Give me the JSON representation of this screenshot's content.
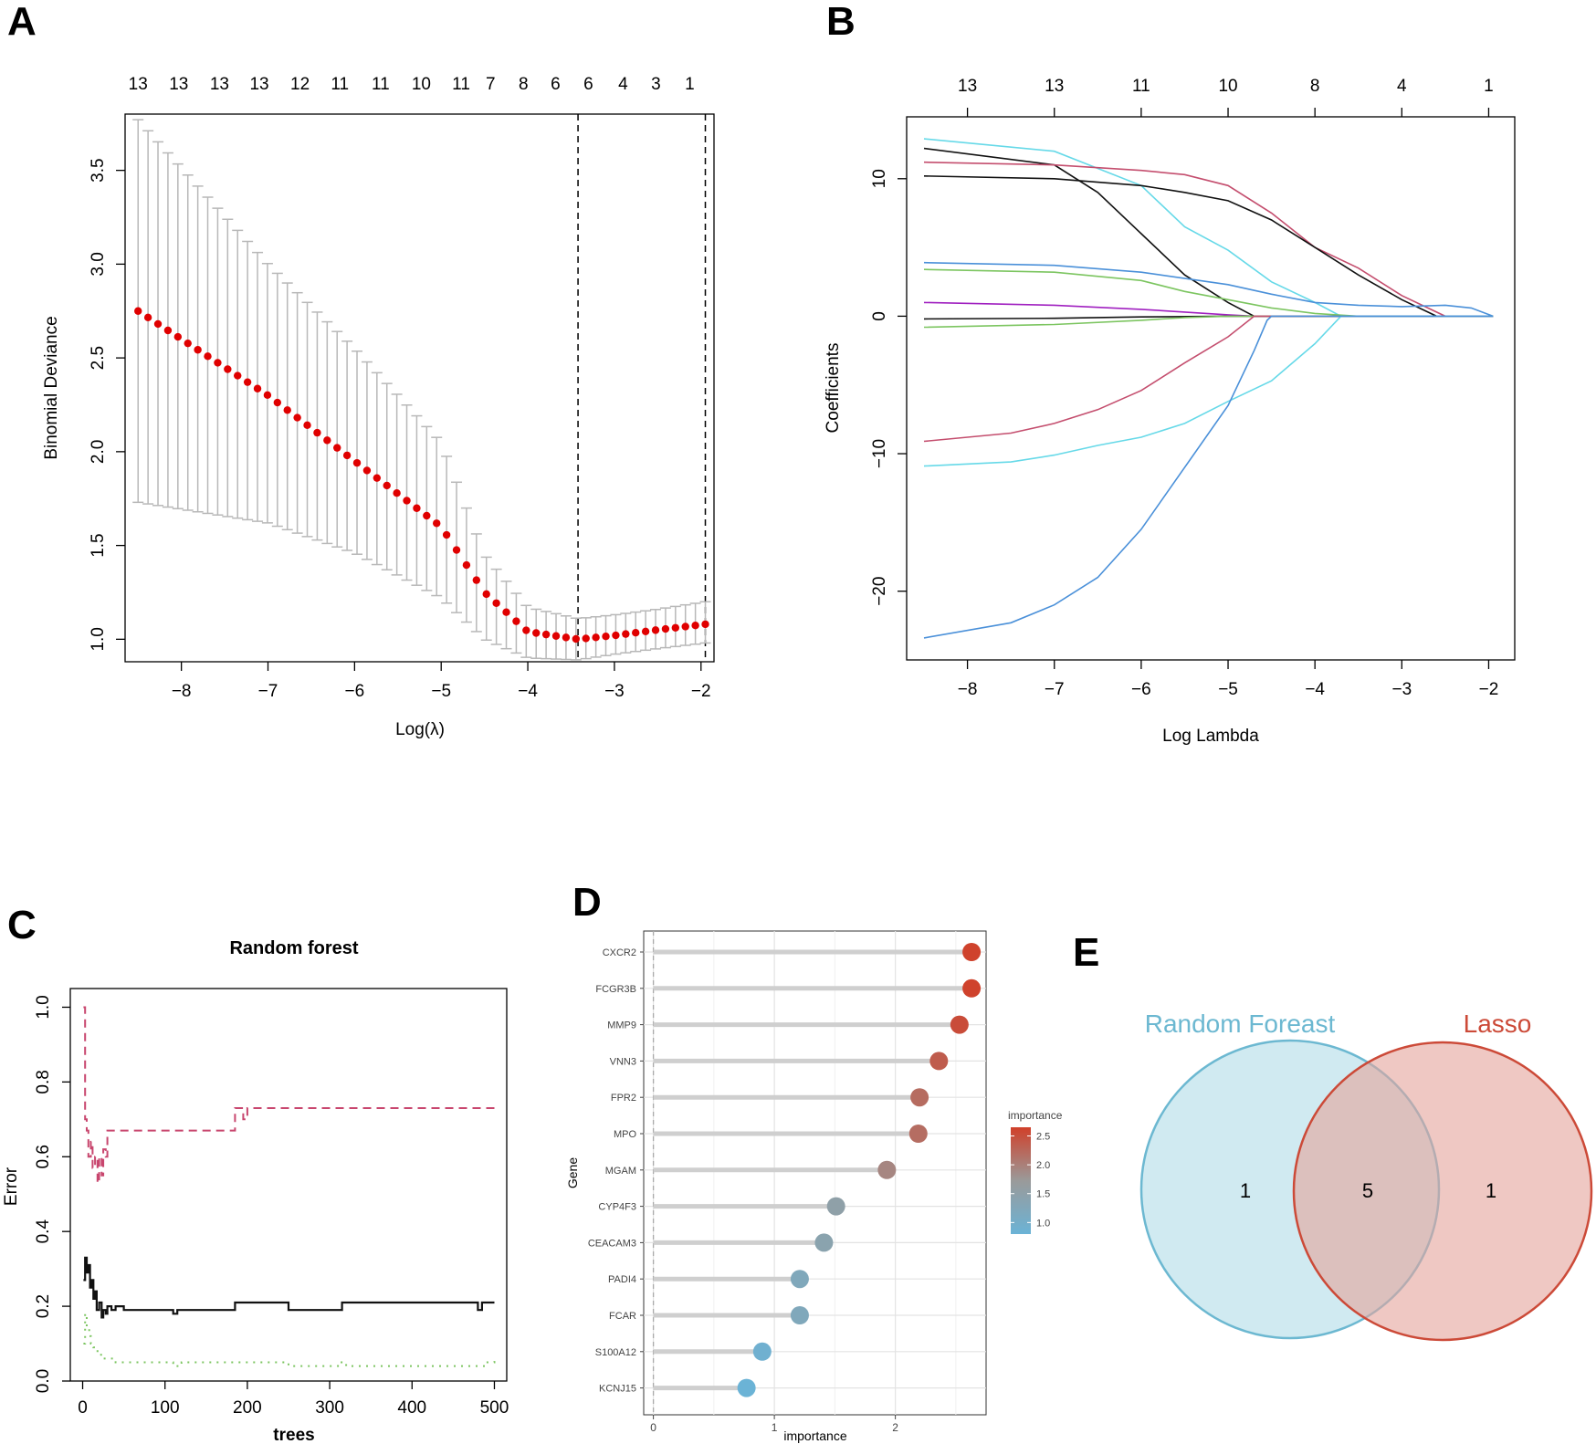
{
  "panels": {
    "A": "A",
    "B": "B",
    "C": "C",
    "D": "D",
    "E": "E"
  },
  "chart_data": [
    {
      "panel": "A",
      "type": "scatter",
      "xlabel": "Log(λ)",
      "ylabel": "Binomial Deviance",
      "xlim": [
        -8.65,
        -1.85
      ],
      "ylim": [
        0.88,
        3.8
      ],
      "x_ticks": [
        -8,
        -7,
        -6,
        -5,
        -4,
        -3,
        -2
      ],
      "y_ticks": [
        1.0,
        1.5,
        2.0,
        2.5,
        3.0,
        3.5
      ],
      "top_axis_x": [
        -8.5,
        -8.03,
        -7.56,
        -7.1,
        -6.63,
        -6.17,
        -5.7,
        -5.23,
        -4.77,
        -4.43,
        -4.05,
        -3.68,
        -3.3,
        -2.9,
        -2.52,
        -2.13
      ],
      "top_axis_labels": [
        "13",
        "13",
        "13",
        "13",
        "12",
        "11",
        "11",
        "10",
        "11",
        "7",
        "8",
        "6",
        "6",
        "4",
        "3",
        "1"
      ],
      "lambda_min": -3.42,
      "lambda_1se": -1.95,
      "x": [
        -8.5,
        -7.0,
        -6.0,
        -5.0,
        -4.5,
        -4.0,
        -3.42,
        -3.0,
        -2.5,
        -1.95
      ],
      "y": [
        2.75,
        2.3,
        1.95,
        1.6,
        1.25,
        1.04,
        1.0,
        1.02,
        1.05,
        1.08
      ],
      "y_upper": [
        3.77,
        3.0,
        2.55,
        2.05,
        1.45,
        1.17,
        1.11,
        1.13,
        1.16,
        1.2
      ],
      "y_lower": [
        1.73,
        1.62,
        1.46,
        1.22,
        1.0,
        0.9,
        0.89,
        0.92,
        0.95,
        0.98
      ],
      "point_color": "#e00000",
      "errorbar_color": "#b8b8b8"
    },
    {
      "panel": "B",
      "type": "line",
      "xlabel": "Log Lambda",
      "ylabel": "Coefficients",
      "xlim": [
        -8.7,
        -1.7
      ],
      "ylim": [
        -25,
        14.5
      ],
      "x_ticks": [
        -8,
        -7,
        -6,
        -5,
        -4,
        -3,
        -2
      ],
      "y_ticks": [
        -20,
        -10,
        0,
        10
      ],
      "top_axis_x": [
        -8,
        -7,
        -6,
        -5,
        -4,
        -3,
        -2
      ],
      "top_axis_labels": [
        "13",
        "13",
        "11",
        "10",
        "8",
        "4",
        "1"
      ],
      "series": [
        {
          "color": "#66d9e8",
          "x": [
            -8.5,
            -7,
            -6,
            -5.5,
            -5,
            -4.5,
            -4,
            -3.7,
            -3.5
          ],
          "y": [
            12.9,
            12.0,
            9.5,
            6.5,
            4.8,
            2.5,
            1.0,
            0.0,
            0.0
          ]
        },
        {
          "color": "#111111",
          "x": [
            -8.5,
            -7,
            -6.5,
            -6,
            -5.5,
            -5,
            -4.7,
            -4.5
          ],
          "y": [
            12.2,
            11.0,
            9.0,
            6.0,
            3.0,
            1.0,
            0.0,
            0.0
          ]
        },
        {
          "color": "#c44e6e",
          "x": [
            -8.5,
            -7,
            -6,
            -5.5,
            -5,
            -4.5,
            -4,
            -3.5,
            -3,
            -2.5,
            -2.3
          ],
          "y": [
            11.2,
            11.0,
            10.6,
            10.3,
            9.5,
            7.5,
            5.0,
            3.5,
            1.5,
            0.0,
            0.0
          ]
        },
        {
          "color": "#111111",
          "x": [
            -8.5,
            -7,
            -6,
            -5.5,
            -5,
            -4.5,
            -4,
            -3.5,
            -3,
            -2.6,
            -2.4
          ],
          "y": [
            10.2,
            10.0,
            9.5,
            9.0,
            8.4,
            7.0,
            5.0,
            3.0,
            1.2,
            0.0,
            0.0
          ]
        },
        {
          "color": "#4a90d9",
          "x": [
            -8.5,
            -7,
            -6,
            -5,
            -4.5,
            -4,
            -3.5,
            -3,
            -2.5,
            -2.2,
            -1.95
          ],
          "y": [
            3.9,
            3.7,
            3.2,
            2.3,
            1.6,
            1.0,
            0.8,
            0.7,
            0.8,
            0.6,
            0.0
          ]
        },
        {
          "color": "#7cc560",
          "x": [
            -8.5,
            -7,
            -6,
            -5.5,
            -5,
            -4.5,
            -4,
            -3.5
          ],
          "y": [
            3.4,
            3.2,
            2.6,
            1.8,
            1.2,
            0.6,
            0.2,
            0.0
          ]
        },
        {
          "color": "#a020c0",
          "x": [
            -8.5,
            -7,
            -6,
            -5.5,
            -5,
            -4.7
          ],
          "y": [
            1.0,
            0.8,
            0.5,
            0.3,
            0.1,
            0.0
          ]
        },
        {
          "color": "#111111",
          "x": [
            -8.5,
            -7,
            -6,
            -5,
            -4.7
          ],
          "y": [
            -0.2,
            -0.15,
            -0.05,
            0.0,
            0.0
          ]
        },
        {
          "color": "#7cc560",
          "x": [
            -8.5,
            -7,
            -6,
            -5.5,
            -5,
            -4.7
          ],
          "y": [
            -0.8,
            -0.6,
            -0.3,
            -0.1,
            0.0,
            0.0
          ]
        },
        {
          "color": "#c44e6e",
          "x": [
            -8.5,
            -7.5,
            -7,
            -6.5,
            -6,
            -5.5,
            -5,
            -4.7
          ],
          "y": [
            -9.1,
            -8.5,
            -7.8,
            -6.8,
            -5.4,
            -3.4,
            -1.5,
            0.0
          ]
        },
        {
          "color": "#66d9e8",
          "x": [
            -8.5,
            -7.5,
            -7,
            -6.5,
            -6,
            -5.5,
            -5,
            -4.5,
            -4,
            -3.7
          ],
          "y": [
            -10.9,
            -10.6,
            -10.1,
            -9.4,
            -8.8,
            -7.8,
            -6.2,
            -4.7,
            -2.0,
            0.0
          ]
        },
        {
          "color": "#4a90d9",
          "x": [
            -8.5,
            -7.5,
            -7,
            -6.5,
            -6,
            -5.5,
            -5,
            -4.7,
            -4.55,
            -4.5
          ],
          "y": [
            -23.4,
            -22.3,
            -21.0,
            -19.0,
            -15.5,
            -11.0,
            -6.5,
            -2.5,
            -0.3,
            0.0
          ]
        }
      ]
    },
    {
      "panel": "C",
      "type": "line",
      "title": "Random forest",
      "xlabel": "trees",
      "ylabel": "Error",
      "xlim": [
        -15,
        515
      ],
      "ylim": [
        0,
        1.05
      ],
      "x_ticks": [
        0,
        100,
        200,
        300,
        400,
        500
      ],
      "y_ticks": [
        0.0,
        0.2,
        0.4,
        0.6,
        0.8,
        1.0
      ],
      "series": [
        {
          "color": "#111111",
          "dash": "solid",
          "x": [
            1,
            3,
            5,
            7,
            9,
            11,
            13,
            15,
            17,
            20,
            23,
            25,
            28,
            30,
            35,
            40,
            50,
            105,
            110,
            115,
            120,
            180,
            185,
            245,
            250,
            310,
            315,
            480,
            485,
            500
          ],
          "y": [
            0.27,
            0.33,
            0.29,
            0.31,
            0.25,
            0.27,
            0.22,
            0.24,
            0.19,
            0.21,
            0.17,
            0.19,
            0.18,
            0.2,
            0.19,
            0.2,
            0.19,
            0.19,
            0.18,
            0.19,
            0.19,
            0.19,
            0.21,
            0.21,
            0.19,
            0.19,
            0.21,
            0.19,
            0.21,
            0.21
          ]
        },
        {
          "color": "#c8466e",
          "dash": "dashed",
          "x": [
            1,
            3,
            5,
            7,
            10,
            12,
            15,
            18,
            20,
            23,
            25,
            28,
            30,
            35,
            180,
            185,
            195,
            200,
            500
          ],
          "y": [
            1.0,
            0.7,
            0.67,
            0.6,
            0.64,
            0.57,
            0.6,
            0.53,
            0.6,
            0.55,
            0.62,
            0.6,
            0.67,
            0.67,
            0.67,
            0.73,
            0.7,
            0.73,
            0.73
          ]
        },
        {
          "color": "#7cc560",
          "dash": "dotted",
          "x": [
            1,
            3,
            5,
            8,
            10,
            13,
            15,
            20,
            25,
            30,
            40,
            60,
            100,
            110,
            120,
            240,
            250,
            300,
            310,
            320,
            480,
            490,
            500
          ],
          "y": [
            0.1,
            0.18,
            0.14,
            0.12,
            0.1,
            0.09,
            0.08,
            0.07,
            0.06,
            0.06,
            0.05,
            0.05,
            0.05,
            0.04,
            0.05,
            0.05,
            0.04,
            0.04,
            0.05,
            0.04,
            0.04,
            0.05,
            0.06
          ]
        }
      ]
    },
    {
      "panel": "D",
      "type": "scatter",
      "xlabel": "importance",
      "ylabel": "Gene",
      "xlim": [
        -0.08,
        2.75
      ],
      "x_ticks": [
        0,
        1,
        2
      ],
      "categories": [
        "CXCR2",
        "FCGR3B",
        "MMP9",
        "VNN3",
        "FPR2",
        "MPO",
        "MGAM",
        "CYP4F3",
        "CEACAM3",
        "PADI4",
        "FCAR",
        "S100A12",
        "KCNJ15"
      ],
      "values": [
        2.63,
        2.63,
        2.53,
        2.36,
        2.2,
        2.19,
        1.93,
        1.51,
        1.41,
        1.21,
        1.21,
        0.9,
        0.77
      ],
      "legend_title": "importance",
      "legend_ticks": [
        "1.0",
        "1.5",
        "2.0",
        "2.5"
      ],
      "legend_range": [
        0.8,
        2.65
      ],
      "color_low": "#6bb3d6",
      "color_mid": "#9a9a9a",
      "color_high": "#d0402a"
    }
  ],
  "venn": {
    "left_label": "Random Foreast",
    "right_label": "Lasso",
    "left_only": "1",
    "overlap": "5",
    "right_only": "1",
    "left_color": "#6cb8d1",
    "right_color": "#cc4a38"
  }
}
